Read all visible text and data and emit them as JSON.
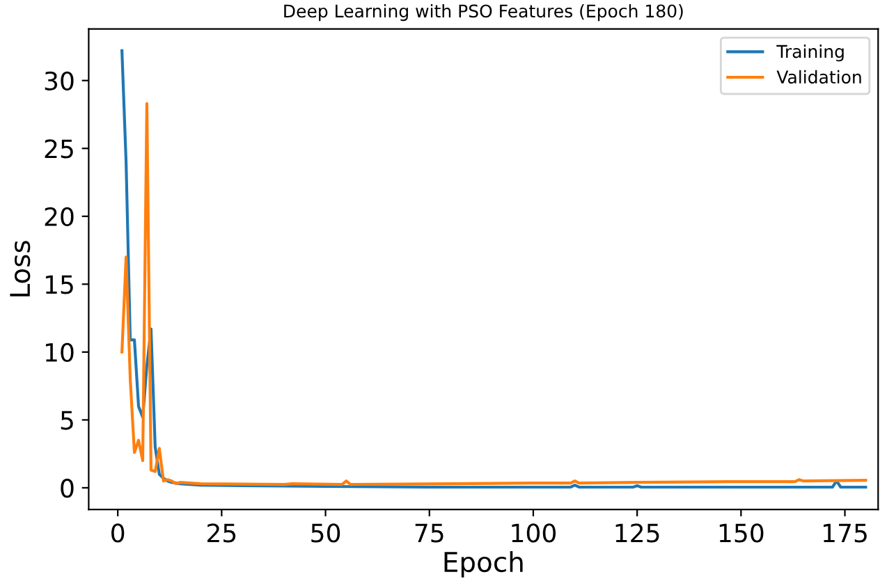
{
  "chart_data": {
    "type": "line",
    "title": "Deep Learning with PSO Features (Epoch 180)",
    "xlabel": "Epoch",
    "ylabel": "Loss",
    "xlim": [
      -7,
      183
    ],
    "ylim": [
      -1.6,
      33.8
    ],
    "xticks": [
      0,
      25,
      50,
      75,
      100,
      125,
      150,
      175
    ],
    "yticks": [
      0,
      5,
      10,
      15,
      20,
      25,
      30
    ],
    "legend": "top right",
    "grid": false,
    "series": [
      {
        "name": "Training",
        "color": "#1f77b4",
        "x": [
          1,
          2,
          3,
          4,
          5,
          6,
          7,
          8,
          9,
          10,
          11,
          12,
          13,
          15,
          20,
          30,
          50,
          75,
          100,
          109,
          110,
          111,
          124,
          125,
          126,
          172,
          173,
          174,
          180
        ],
        "values": [
          32.2,
          24,
          10.9,
          10.9,
          6,
          5.2,
          9,
          11.7,
          3,
          1,
          0.7,
          0.5,
          0.4,
          0.3,
          0.2,
          0.15,
          0.1,
          0.05,
          0.05,
          0.05,
          0.2,
          0.05,
          0.05,
          0.15,
          0.05,
          0.05,
          0.5,
          0.05,
          0.05
        ]
      },
      {
        "name": "Validation",
        "color": "#ff7f0e",
        "x": [
          1,
          2,
          3,
          4,
          5,
          6,
          7,
          8,
          9,
          10,
          11,
          12,
          13,
          14,
          15,
          20,
          40,
          42,
          54,
          55,
          56,
          80,
          100,
          109,
          110,
          111,
          125,
          147,
          163,
          164,
          165,
          180
        ],
        "values": [
          10,
          17,
          8,
          2.6,
          3.5,
          2,
          28.3,
          1.3,
          1.2,
          2.9,
          0.5,
          0.6,
          0.5,
          0.3,
          0.4,
          0.3,
          0.25,
          0.3,
          0.25,
          0.5,
          0.25,
          0.3,
          0.35,
          0.35,
          0.5,
          0.35,
          0.4,
          0.45,
          0.45,
          0.6,
          0.5,
          0.55
        ]
      }
    ]
  }
}
